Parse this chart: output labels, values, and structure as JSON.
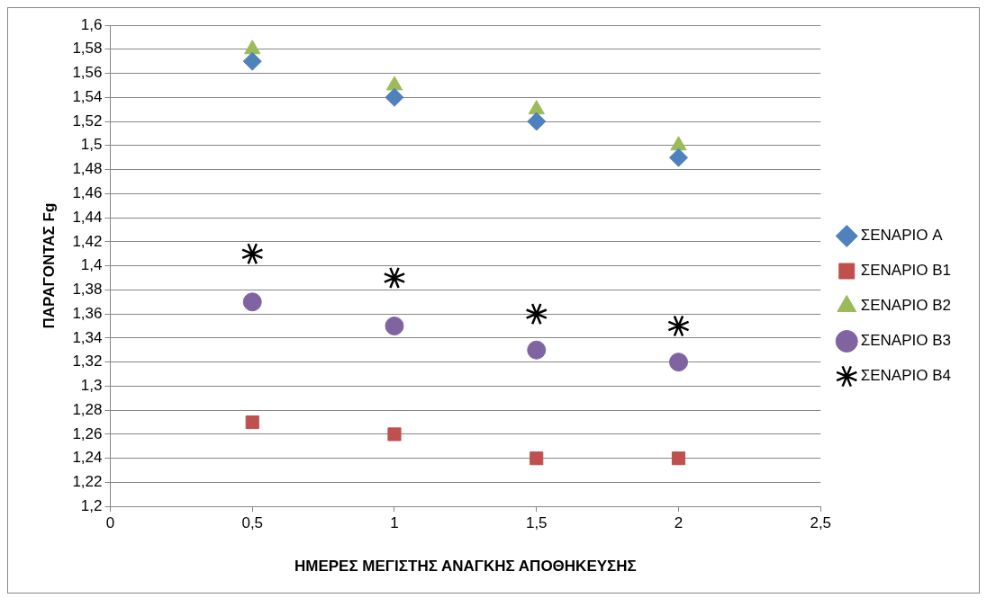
{
  "chart_data": {
    "type": "scatter",
    "xlabel": "ΗΜΕΡΕΣ ΜΕΓΙΣΤΗΣ ΑΝΑΓΚΗΣ ΑΠΟΘΗΚΕΥΣΗΣ",
    "ylabel": "ΠΑΡΑΓΟΝΤΑΣ Fg",
    "x": [
      0.5,
      1,
      1.5,
      2
    ],
    "series": [
      {
        "name": "ΣΕΝΑΡΙΟ A",
        "color": "#4f81bd",
        "marker": "diamond",
        "values": [
          1.57,
          1.54,
          1.52,
          1.49
        ]
      },
      {
        "name": "ΣΕΝΑΡΙΟ B1",
        "color": "#c0504d",
        "marker": "square",
        "values": [
          1.27,
          1.26,
          1.24,
          1.24
        ]
      },
      {
        "name": "ΣΕΝΑΡΙΟ B2",
        "color": "#9bbb59",
        "marker": "triangle",
        "values": [
          1.58,
          1.55,
          1.53,
          1.5
        ]
      },
      {
        "name": "ΣΕΝΑΡΙΟ B3",
        "color": "#8064a2",
        "marker": "circle",
        "values": [
          1.37,
          1.35,
          1.33,
          1.32
        ]
      },
      {
        "name": "ΣΕΝΑΡΙΟ B4",
        "color": "#000000",
        "marker": "cross",
        "values": [
          1.41,
          1.39,
          1.36,
          1.35
        ]
      }
    ],
    "xlim": [
      0,
      2.5
    ],
    "xticks": [
      0,
      {
        "value": 0.5,
        "label": "0,5"
      },
      1,
      {
        "value": 1.5,
        "label": "1,5"
      },
      2,
      {
        "value": 2.5,
        "label": "2,5"
      }
    ],
    "ylim": [
      1.2,
      1.6
    ],
    "yticks": [
      {
        "value": 1.2,
        "label": "1,2"
      },
      {
        "value": 1.22,
        "label": "1,22"
      },
      {
        "value": 1.24,
        "label": "1,24"
      },
      {
        "value": 1.26,
        "label": "1,26"
      },
      {
        "value": 1.28,
        "label": "1,28"
      },
      {
        "value": 1.3,
        "label": "1,3"
      },
      {
        "value": 1.32,
        "label": "1,32"
      },
      {
        "value": 1.34,
        "label": "1,34"
      },
      {
        "value": 1.36,
        "label": "1,36"
      },
      {
        "value": 1.38,
        "label": "1,38"
      },
      {
        "value": 1.4,
        "label": "1,4"
      },
      {
        "value": 1.42,
        "label": "1,42"
      },
      {
        "value": 1.44,
        "label": "1,44"
      },
      {
        "value": 1.46,
        "label": "1,46"
      },
      {
        "value": 1.48,
        "label": "1,48"
      },
      {
        "value": 1.5,
        "label": "1,5"
      },
      {
        "value": 1.52,
        "label": "1,52"
      },
      {
        "value": 1.54,
        "label": "1,54"
      },
      {
        "value": 1.56,
        "label": "1,56"
      },
      {
        "value": 1.58,
        "label": "1,58"
      },
      {
        "value": 1.6,
        "label": "1,6"
      }
    ],
    "grid": "y",
    "legend": "right"
  }
}
